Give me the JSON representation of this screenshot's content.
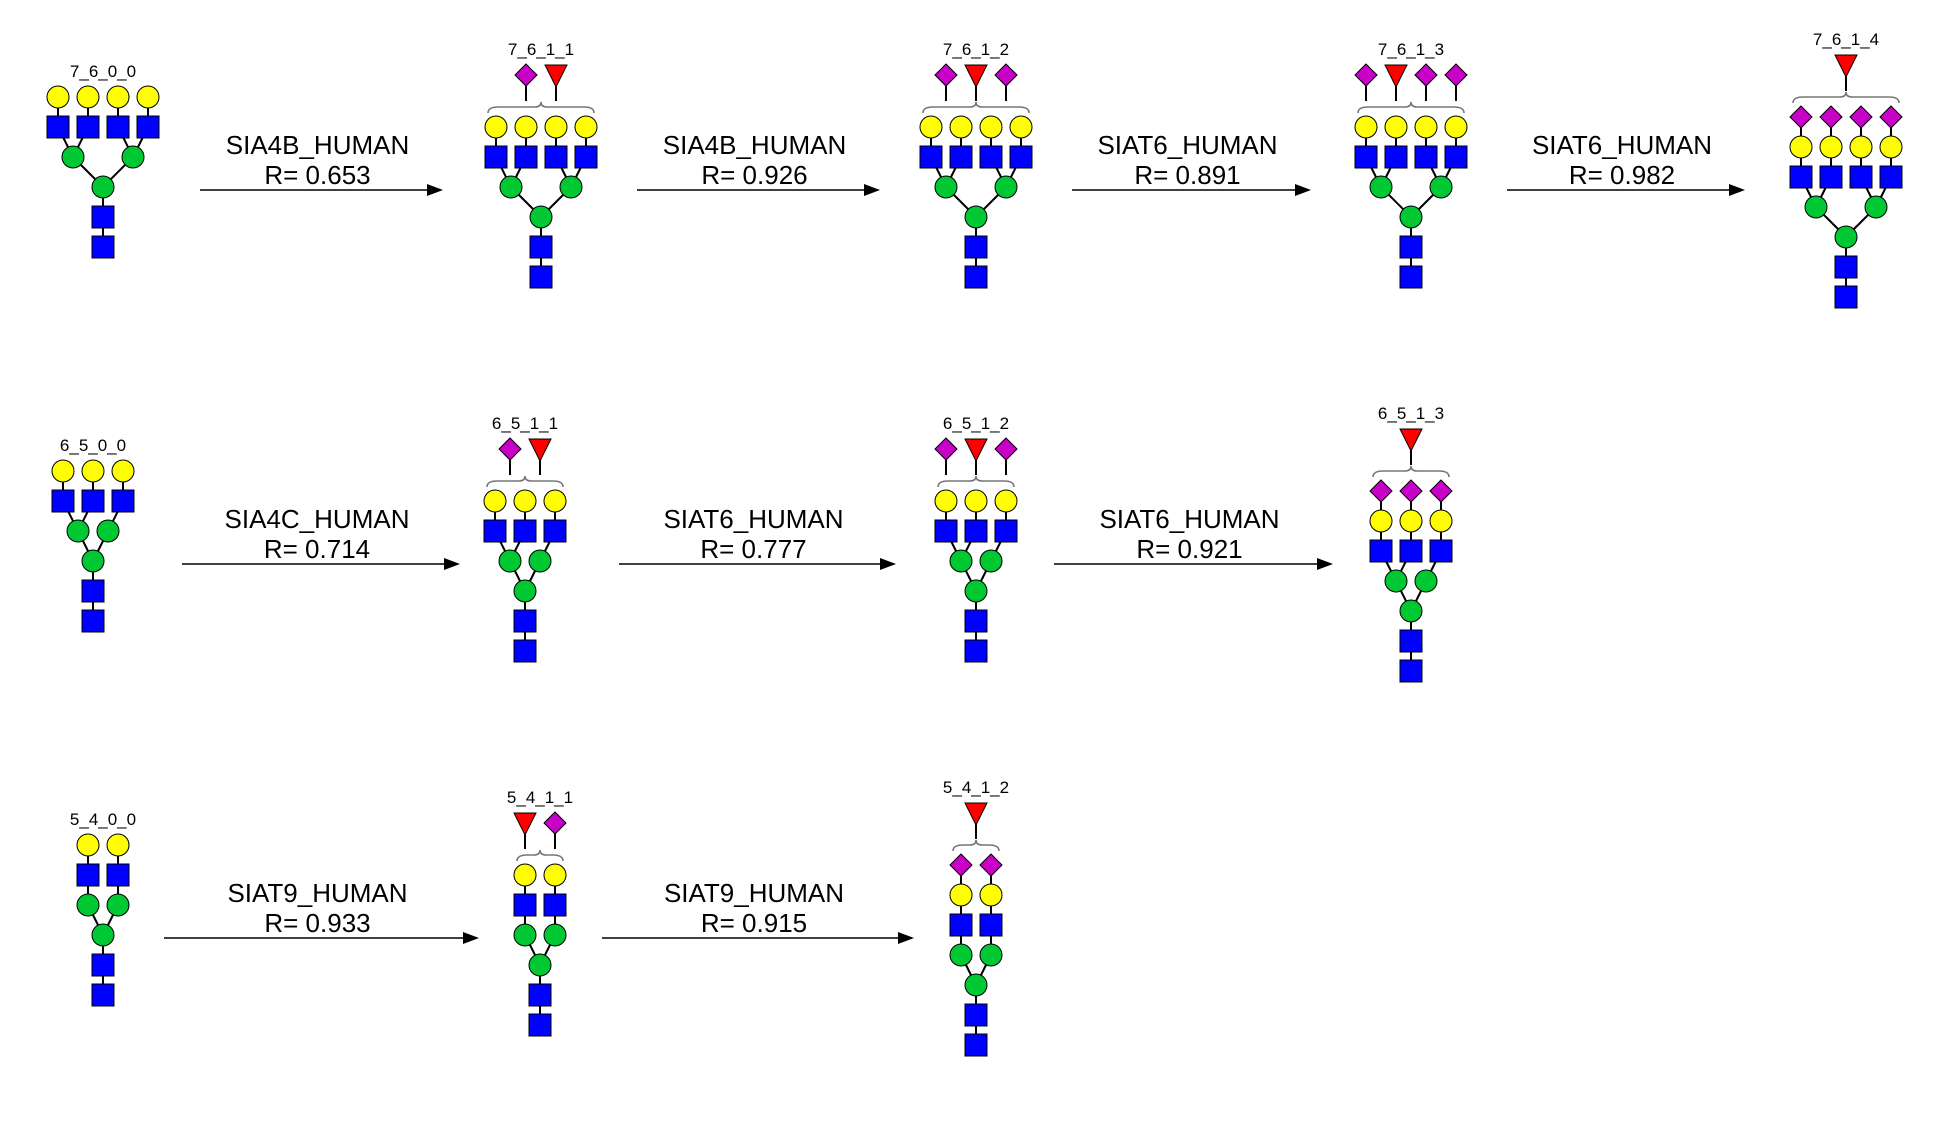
{
  "colors": {
    "galactose": "#ffff00",
    "glcnac": "#0000ff",
    "mannose": "#00c832",
    "fucose": "#ff0000",
    "sialic_acid": "#c800c8",
    "line": "#000000"
  },
  "rows": [
    {
      "glycans": [
        {
          "label": "7_6_0_0",
          "antennae": 4,
          "fucose": false,
          "sialic": 0,
          "sialic_on_arms": false
        },
        {
          "label": "7_6_1_1",
          "antennae": 4,
          "fucose": true,
          "sialic": 1,
          "sialic_on_arms": false
        },
        {
          "label": "7_6_1_2",
          "antennae": 4,
          "fucose": true,
          "sialic": 2,
          "sialic_on_arms": false
        },
        {
          "label": "7_6_1_3",
          "antennae": 4,
          "fucose": true,
          "sialic": 3,
          "sialic_on_arms": false
        },
        {
          "label": "7_6_1_4",
          "antennae": 4,
          "fucose": true,
          "sialic": 4,
          "sialic_on_arms": true
        }
      ],
      "reactions": [
        {
          "enzyme": "SIA4B_HUMAN",
          "r": "R= 0.653"
        },
        {
          "enzyme": "SIA4B_HUMAN",
          "r": "R= 0.926"
        },
        {
          "enzyme": "SIAT6_HUMAN",
          "r": "R= 0.891"
        },
        {
          "enzyme": "SIAT6_HUMAN",
          "r": "R= 0.982"
        }
      ]
    },
    {
      "glycans": [
        {
          "label": "6_5_0_0",
          "antennae": 3,
          "fucose": false,
          "sialic": 0,
          "sialic_on_arms": false
        },
        {
          "label": "6_5_1_1",
          "antennae": 3,
          "fucose": true,
          "sialic": 1,
          "sialic_on_arms": false
        },
        {
          "label": "6_5_1_2",
          "antennae": 3,
          "fucose": true,
          "sialic": 2,
          "sialic_on_arms": false
        },
        {
          "label": "6_5_1_3",
          "antennae": 3,
          "fucose": true,
          "sialic": 3,
          "sialic_on_arms": true
        }
      ],
      "reactions": [
        {
          "enzyme": "SIA4C_HUMAN",
          "r": "R= 0.714"
        },
        {
          "enzyme": "SIAT6_HUMAN",
          "r": "R= 0.777"
        },
        {
          "enzyme": "SIAT6_HUMAN",
          "r": "R= 0.921"
        }
      ]
    },
    {
      "glycans": [
        {
          "label": "5_4_0_0",
          "antennae": 2,
          "fucose": false,
          "sialic": 0,
          "sialic_on_arms": false
        },
        {
          "label": "5_4_1_1",
          "antennae": 2,
          "fucose": true,
          "sialic": 1,
          "sialic_on_arms": false,
          "fucose_first": true
        },
        {
          "label": "5_4_1_2",
          "antennae": 2,
          "fucose": true,
          "sialic": 2,
          "sialic_on_arms": true
        }
      ],
      "reactions": [
        {
          "enzyme": "SIAT9_HUMAN",
          "r": "R= 0.933"
        },
        {
          "enzyme": "SIAT9_HUMAN",
          "r": "R= 0.915"
        }
      ]
    }
  ]
}
